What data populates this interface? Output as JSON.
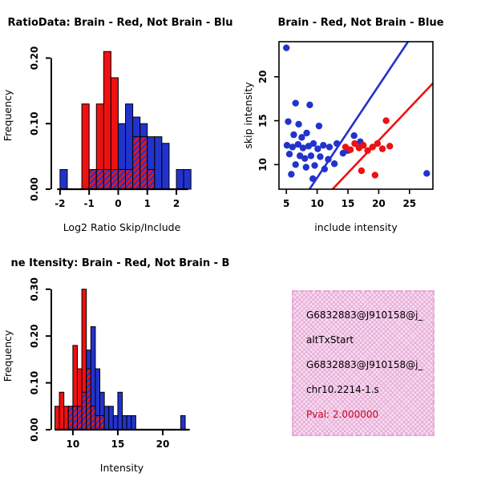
{
  "panels": {
    "top_left": {
      "title": "RatioData: Brain - Red, Not Brain - Blu"
    },
    "top_right": {
      "title": "Brain - Red, Not Brain - Blue"
    },
    "bottom_left": {
      "title": "ne Itensity: Brain - Red, Not Brain - B"
    },
    "bottom_right": {
      "lines": [
        "G6832883@J910158@j_",
        "altTxStart",
        "G6832883@J910158@j_",
        "chr10.2214-1.s"
      ],
      "pval_label": "Pval: 2.000000",
      "bg_color": "#fadcef",
      "hatch_color": "#e2a9d6",
      "pval_color": "#cc0022"
    }
  },
  "chart_data": [
    {
      "type": "bar",
      "title": "RatioData: Brain - Red, Not Brain - Blu",
      "xlabel": "Log2 Ratio Skip/Include",
      "ylabel": "Frequency",
      "xlim": [
        -2.3,
        2.55
      ],
      "ylim": [
        0,
        0.225
      ],
      "axis_x": [
        -2.1,
        2.4
      ],
      "x_ticks": [
        -2,
        -1,
        0,
        1,
        2
      ],
      "y_ticks": [
        0,
        0.1,
        0.2
      ],
      "bin_width": 0.25,
      "bins": [
        -2,
        -1.75,
        -1.5,
        -1.25,
        -1,
        -0.75,
        -0.5,
        -0.25,
        0,
        0.25,
        0.5,
        0.75,
        1,
        1.25,
        1.5,
        1.75,
        2,
        2.25
      ],
      "series": [
        {
          "name": "Brain",
          "color": "#ee1111",
          "values": [
            0,
            0,
            0,
            0.13,
            0.03,
            0.13,
            0.21,
            0.17,
            0.03,
            0.03,
            0.08,
            0.08,
            0.03,
            0,
            0,
            0,
            0,
            0
          ]
        },
        {
          "name": "Not Brain",
          "color": "#2233cc",
          "values": [
            0.03,
            0,
            0,
            0,
            0.03,
            0.03,
            0.03,
            0.03,
            0.1,
            0.13,
            0.11,
            0.1,
            0.08,
            0.08,
            0.07,
            0,
            0.03,
            0.03
          ]
        }
      ]
    },
    {
      "type": "scatter",
      "title": "Brain - Red, Not Brain - Blue",
      "xlabel": "include intensity",
      "ylabel": "skip intensity",
      "xlim": [
        3.8,
        28.8
      ],
      "ylim": [
        7.2,
        24
      ],
      "x_ticks": [
        5,
        10,
        15,
        20,
        25
      ],
      "y_ticks": [
        10,
        15,
        20
      ],
      "series": [
        {
          "name": "Not Brain",
          "color": "#2233cc",
          "points": [
            [
              5,
              23.3
            ],
            [
              8.8,
              16.8
            ],
            [
              6.5,
              17
            ],
            [
              5.3,
              14.9
            ],
            [
              7,
              14.6
            ],
            [
              10.3,
              14.4
            ],
            [
              6.2,
              13.4
            ],
            [
              7.5,
              13.1
            ],
            [
              8.3,
              13.6
            ],
            [
              16,
              13.3
            ],
            [
              5.1,
              12.2
            ],
            [
              6,
              12
            ],
            [
              6.9,
              12.3
            ],
            [
              7.7,
              11.9
            ],
            [
              8.6,
              12.1
            ],
            [
              9.4,
              12.4
            ],
            [
              10.1,
              11.8
            ],
            [
              11,
              12.2
            ],
            [
              12,
              12
            ],
            [
              13.2,
              12.4
            ],
            [
              17,
              12.6
            ],
            [
              5.5,
              11.2
            ],
            [
              7.2,
              11
            ],
            [
              8,
              10.7
            ],
            [
              9,
              11
            ],
            [
              10.5,
              10.9
            ],
            [
              11.8,
              10.6
            ],
            [
              14.2,
              11.3
            ],
            [
              15,
              11.6
            ],
            [
              6.5,
              10
            ],
            [
              8.2,
              9.7
            ],
            [
              9.6,
              9.9
            ],
            [
              11.2,
              9.5
            ],
            [
              12.8,
              10.1
            ],
            [
              5.8,
              8.9
            ],
            [
              9.3,
              8.4
            ],
            [
              27.8,
              9
            ]
          ]
        },
        {
          "name": "Brain",
          "color": "#ee1111",
          "points": [
            [
              14.6,
              12
            ],
            [
              15.4,
              11.7
            ],
            [
              16.1,
              12.4
            ],
            [
              16.8,
              11.9
            ],
            [
              17.5,
              12.2
            ],
            [
              18.2,
              11.6
            ],
            [
              19,
              12
            ],
            [
              19.8,
              12.4
            ],
            [
              20.6,
              11.8
            ],
            [
              21.2,
              15
            ],
            [
              17.2,
              9.3
            ],
            [
              19.4,
              8.8
            ],
            [
              21.8,
              12.1
            ]
          ]
        }
      ],
      "lines": [
        {
          "name": "not-brain-fit",
          "color": "#2233cc",
          "slope": 1.05,
          "intercept": -2
        },
        {
          "name": "brain-fit",
          "color": "#ee1111",
          "slope": 0.74,
          "intercept": -2.05
        }
      ]
    },
    {
      "type": "bar",
      "title": "ne Itensity: Brain - Red, Not Brain - B",
      "xlabel": "Intensity",
      "ylabel": "Frequency",
      "xlim": [
        7.6,
        23.3
      ],
      "ylim": [
        0,
        0.315
      ],
      "axis_x": [
        8,
        23
      ],
      "x_ticks": [
        10,
        15,
        20
      ],
      "y_ticks": [
        0,
        0.1,
        0.2,
        0.3
      ],
      "bin_width": 0.5,
      "bins": [
        8,
        8.5,
        9,
        9.5,
        10,
        10.5,
        11,
        11.5,
        12,
        12.5,
        13,
        13.5,
        14,
        14.5,
        15,
        15.5,
        16,
        16.5,
        17,
        21.5,
        22
      ],
      "series": [
        {
          "name": "Brain",
          "color": "#ee1111",
          "values": [
            0.05,
            0.08,
            0.05,
            0.05,
            0.18,
            0.13,
            0.3,
            0.13,
            0.05,
            0.03,
            0.03,
            0,
            0,
            0,
            0,
            0,
            0,
            0,
            0,
            0,
            0
          ]
        },
        {
          "name": "Not Brain",
          "color": "#2233cc",
          "values": [
            0,
            0,
            0,
            0.05,
            0.05,
            0.05,
            0.08,
            0.17,
            0.22,
            0.13,
            0.08,
            0.05,
            0.05,
            0.03,
            0.08,
            0.03,
            0.03,
            0.03,
            0,
            0,
            0.03
          ]
        }
      ]
    }
  ]
}
